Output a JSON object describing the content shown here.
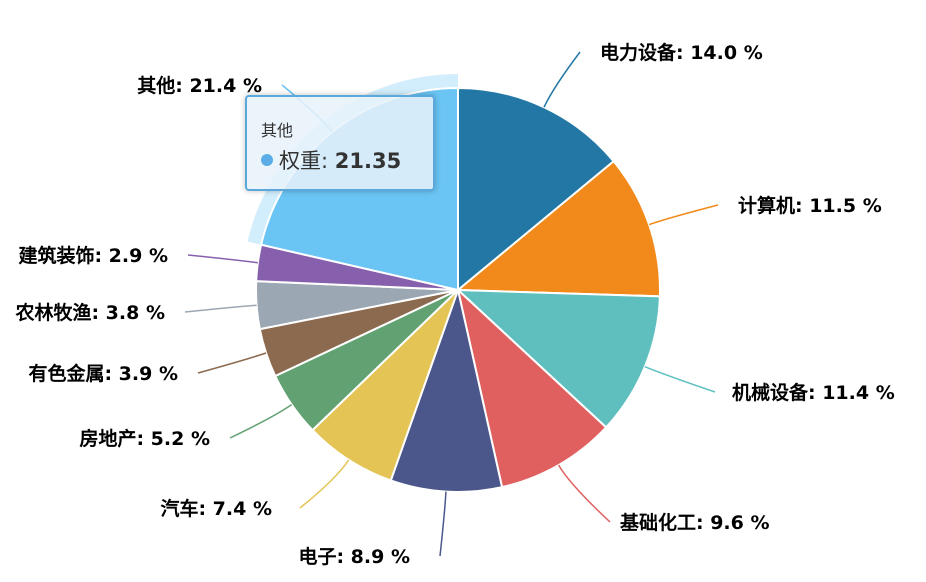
{
  "chart_data": {
    "type": "pie",
    "series_name": "权重",
    "slices": [
      {
        "name": "电力设备",
        "value": 14.0,
        "label": "电力设备: 14.0 %",
        "color": "#2277a4"
      },
      {
        "name": "计算机",
        "value": 11.5,
        "label": "计算机: 11.5 %",
        "color": "#f28a1b"
      },
      {
        "name": "机械设备",
        "value": 11.4,
        "label": "机械设备: 11.4 %",
        "color": "#5fbfbf"
      },
      {
        "name": "基础化工",
        "value": 9.6,
        "label": "基础化工: 9.6 %",
        "color": "#e06060"
      },
      {
        "name": "电子",
        "value": 8.9,
        "label": "电子: 8.9 %",
        "color": "#4b578a"
      },
      {
        "name": "汽车",
        "value": 7.4,
        "label": "汽车: 7.4 %",
        "color": "#e3c455"
      },
      {
        "name": "房地产",
        "value": 5.2,
        "label": "房地产: 5.2 %",
        "color": "#62a172"
      },
      {
        "name": "有色金属",
        "value": 3.9,
        "label": "有色金属: 3.9 %",
        "color": "#8c6a4f"
      },
      {
        "name": "农林牧渔",
        "value": 3.8,
        "label": "农林牧渔: 3.8 %",
        "color": "#9ba7b3"
      },
      {
        "name": "建筑装饰",
        "value": 2.9,
        "label": "建筑装饰: 2.9 %",
        "color": "#8660ad"
      },
      {
        "name": "其他",
        "value": 21.4,
        "label": "其他: 21.4 %",
        "color": "#6ac4f4",
        "highlighted": true
      }
    ]
  },
  "tooltip": {
    "title": "其他",
    "series_label": "权重: ",
    "value": "21.35",
    "dot_color": "#5aade6"
  }
}
